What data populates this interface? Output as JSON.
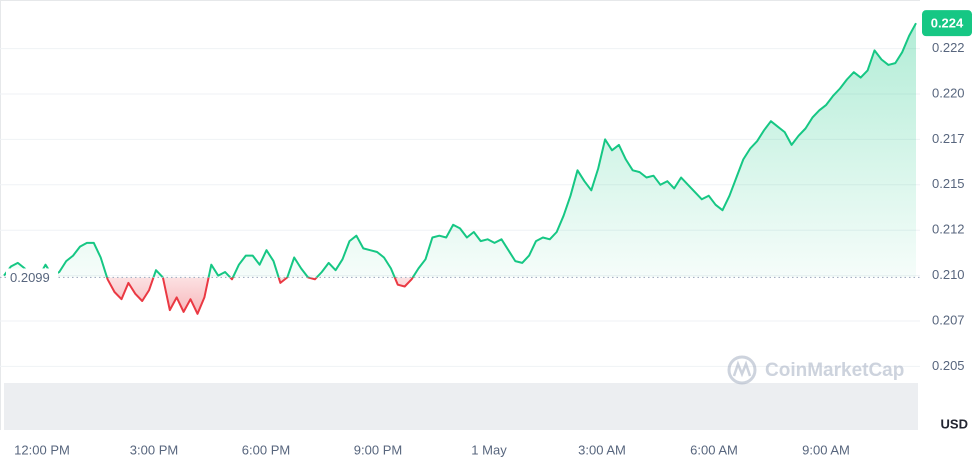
{
  "chart_data": {
    "type": "line",
    "currency": "USD",
    "watermark": "CoinMarketCap",
    "color_up": "#16c784",
    "color_down": "#ea3943",
    "ylim": [
      0.2015,
      0.2249
    ],
    "yticks": [
      {
        "value": 0.205,
        "label": "0.205"
      },
      {
        "value": 0.2075,
        "label": "0.207"
      },
      {
        "value": 0.21,
        "label": "0.210"
      },
      {
        "value": 0.2125,
        "label": "0.212"
      },
      {
        "value": 0.215,
        "label": "0.215"
      },
      {
        "value": 0.2175,
        "label": "0.217"
      },
      {
        "value": 0.22,
        "label": "0.220"
      },
      {
        "value": 0.2225,
        "label": "0.222"
      }
    ],
    "grid": true,
    "baseline": {
      "value": 0.2099,
      "label": "0.2099"
    },
    "current": {
      "value": 0.2239,
      "label": "0.224"
    },
    "xtick_labels": [
      "12:00 PM",
      "3:00 PM",
      "6:00 PM",
      "9:00 PM",
      "1 May",
      "3:00 AM",
      "6:00 AM",
      "9:00 AM"
    ],
    "values": [
      0.21,
      0.2105,
      0.2107,
      0.2104,
      0.21,
      0.2099,
      0.2106,
      0.21,
      0.2102,
      0.2108,
      0.2111,
      0.2116,
      0.2118,
      0.2118,
      0.211,
      0.2098,
      0.2091,
      0.2087,
      0.2096,
      0.209,
      0.2086,
      0.2092,
      0.2103,
      0.2099,
      0.2081,
      0.2088,
      0.208,
      0.2087,
      0.2079,
      0.2088,
      0.2106,
      0.21,
      0.2102,
      0.2098,
      0.2106,
      0.2111,
      0.2111,
      0.2106,
      0.2114,
      0.2108,
      0.2096,
      0.2099,
      0.211,
      0.2104,
      0.2099,
      0.2098,
      0.2102,
      0.2107,
      0.2103,
      0.2109,
      0.2119,
      0.2122,
      0.2115,
      0.2114,
      0.2113,
      0.211,
      0.2104,
      0.2095,
      0.2094,
      0.2098,
      0.2104,
      0.2109,
      0.2121,
      0.2122,
      0.2121,
      0.2128,
      0.2126,
      0.2121,
      0.2124,
      0.2119,
      0.212,
      0.2118,
      0.212,
      0.2114,
      0.2108,
      0.2107,
      0.2111,
      0.2119,
      0.2121,
      0.212,
      0.2124,
      0.2133,
      0.2144,
      0.2158,
      0.2152,
      0.2147,
      0.2159,
      0.2175,
      0.2169,
      0.2172,
      0.2164,
      0.2158,
      0.2157,
      0.2154,
      0.2155,
      0.215,
      0.2152,
      0.2148,
      0.2154,
      0.215,
      0.2146,
      0.2142,
      0.2144,
      0.2139,
      0.2136,
      0.2144,
      0.2154,
      0.2164,
      0.217,
      0.2174,
      0.218,
      0.2185,
      0.2182,
      0.2179,
      0.2172,
      0.2177,
      0.2181,
      0.2187,
      0.2191,
      0.2194,
      0.2199,
      0.2203,
      0.2208,
      0.2212,
      0.2209,
      0.2213,
      0.2224,
      0.2219,
      0.2216,
      0.2217,
      0.2223,
      0.2232,
      0.2239
    ]
  }
}
